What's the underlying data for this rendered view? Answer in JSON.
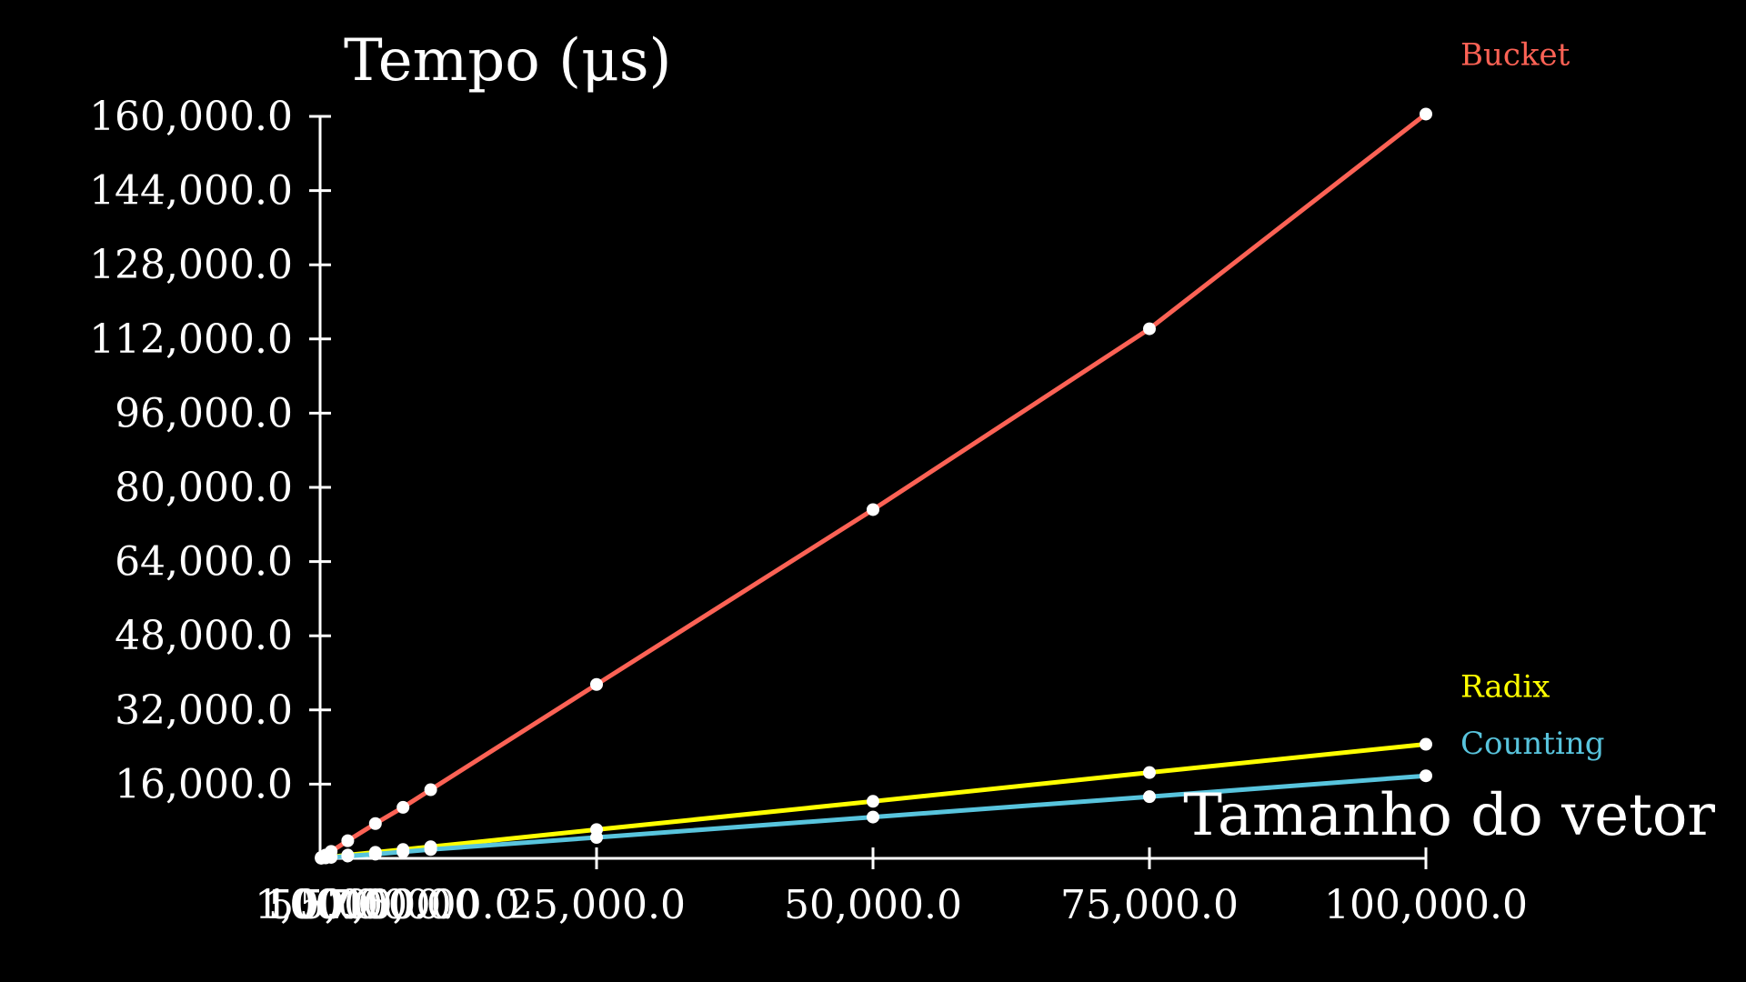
{
  "chart_data": {
    "type": "line",
    "ylabel": "Tempo (μs)",
    "xlabel": "Tamanho do vetor",
    "xlim": [
      0,
      100000
    ],
    "ylim": [
      0,
      160000
    ],
    "x_ticks": [
      100,
      500,
      1000,
      5000,
      7500,
      10000,
      25000,
      50000,
      75000,
      100000
    ],
    "x_tick_labels": [
      "100.0",
      "500.0",
      "1,000.0",
      "5,000.0",
      "7,500.0",
      "10,000.0",
      "25,000.0",
      "50,000.0",
      "75,000.0",
      "100,000.0"
    ],
    "y_ticks": [
      16000,
      32000,
      48000,
      64000,
      80000,
      96000,
      112000,
      128000,
      144000,
      160000
    ],
    "y_tick_labels": [
      "16,000.0",
      "32,000.0",
      "48,000.0",
      "64,000.0",
      "80,000.0",
      "96,000.0",
      "112,000.0",
      "128,000.0",
      "144,000.0",
      "160,000.0"
    ],
    "grid": false,
    "legend_placement": "right, at line ends",
    "x": [
      100,
      500,
      1000,
      2500,
      5000,
      7500,
      10000,
      25000,
      50000,
      75000,
      100000
    ],
    "series": [
      {
        "name": "Bucket",
        "color": "#fc6255",
        "values": [
          200,
          700,
          1500,
          3800,
          7500,
          11000,
          14800,
          37500,
          75200,
          114200,
          160500
        ]
      },
      {
        "name": "Radix",
        "color": "#ffff00",
        "values": [
          40,
          150,
          300,
          700,
          1300,
          1900,
          2500,
          6200,
          12300,
          18500,
          24600
        ]
      },
      {
        "name": "Counting",
        "color": "#58c4dd",
        "values": [
          30,
          100,
          200,
          500,
          900,
          1400,
          1900,
          4500,
          8900,
          13300,
          17800
        ]
      }
    ]
  }
}
